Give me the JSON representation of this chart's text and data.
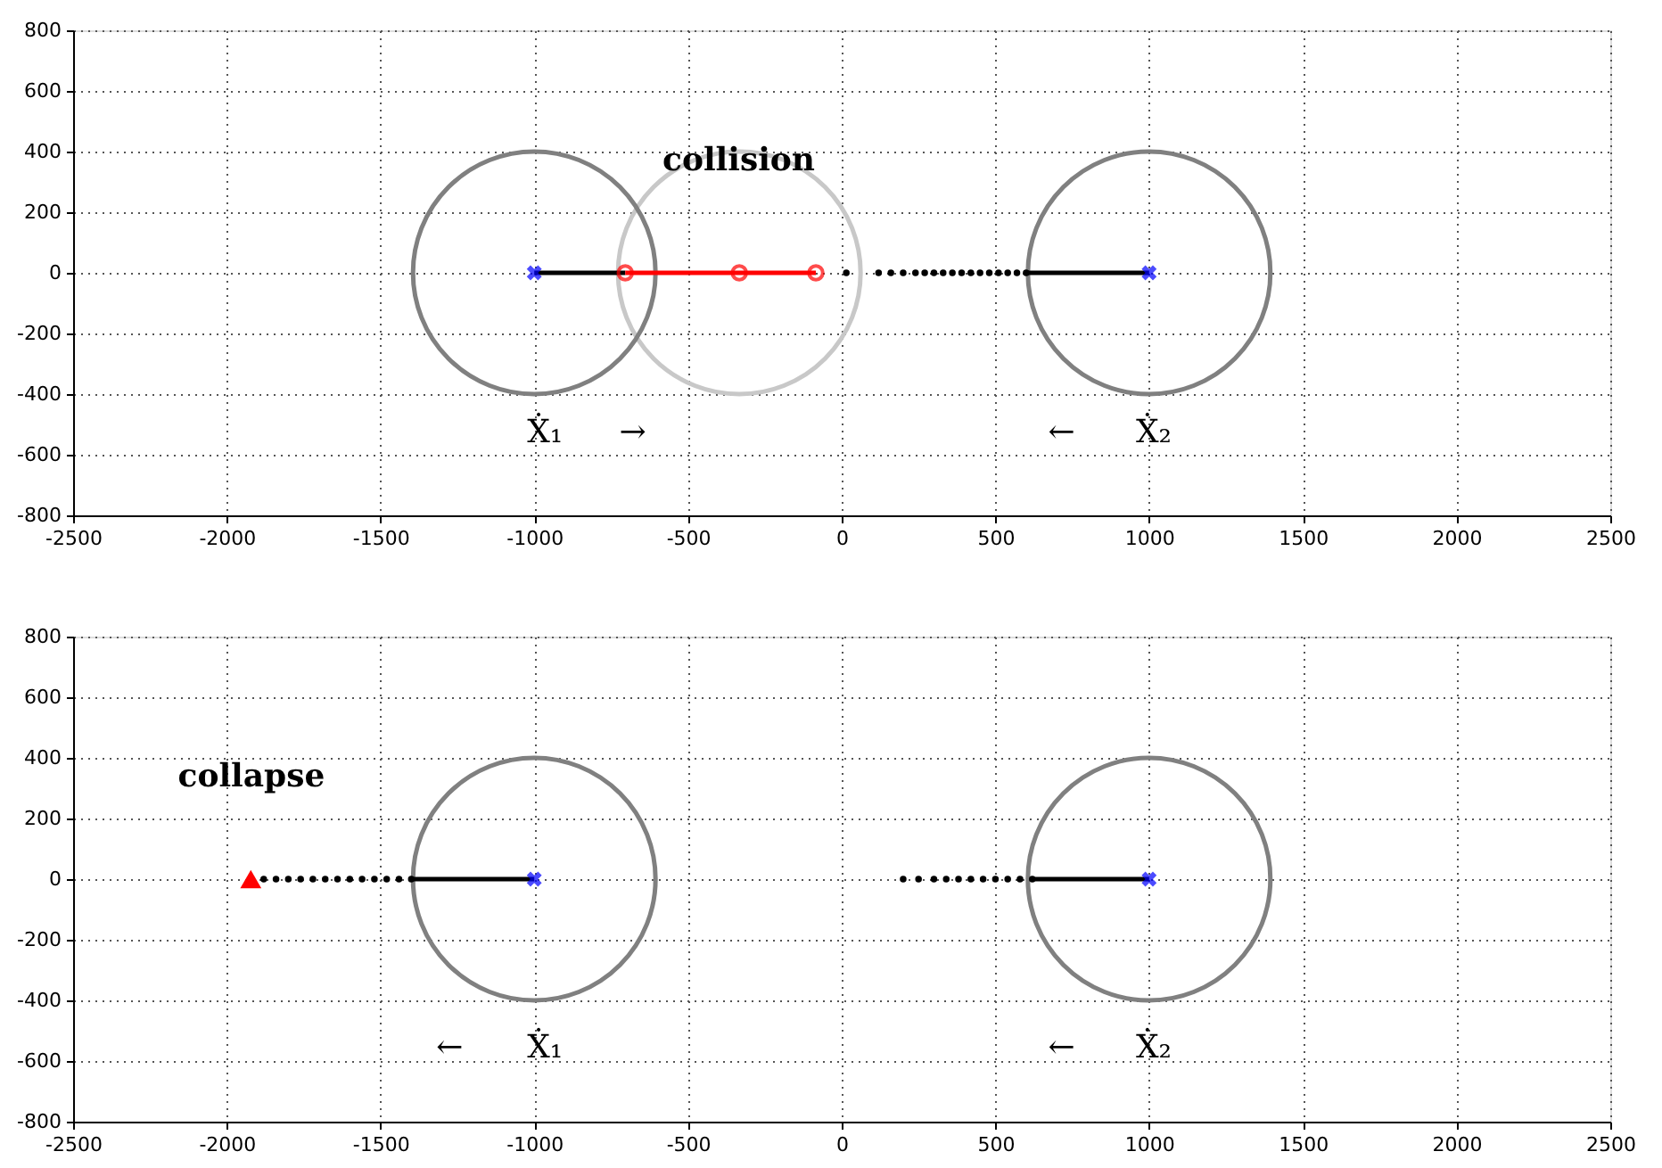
{
  "chart_data": [
    {
      "type": "line",
      "xlim": [
        -2500,
        2500
      ],
      "ylim": [
        -800,
        800
      ],
      "xticks": [
        -2500,
        -2000,
        -1500,
        -1000,
        -500,
        0,
        500,
        1000,
        1500,
        2000,
        2500
      ],
      "yticks": [
        -800,
        -600,
        -400,
        -200,
        0,
        200,
        400,
        600,
        800
      ],
      "grid": true,
      "series": [
        {
          "type": "line",
          "color": "#000000",
          "x": [
            -1000,
            -704
          ],
          "values": [
            0,
            0
          ]
        },
        {
          "type": "line",
          "color": "#ff0000",
          "marker": "circle",
          "x": [
            -704,
            -333,
            -84
          ],
          "values": [
            0,
            0,
            0
          ]
        },
        {
          "type": "scatter",
          "color": "#000000",
          "marker": "circle",
          "x": [
            15,
            120,
            160,
            200,
            240,
            270,
            300,
            330,
            360,
            390,
            420,
            450,
            480,
            510,
            540,
            570,
            600
          ],
          "values": [
            0,
            0,
            0,
            0,
            0,
            0,
            0,
            0,
            0,
            0,
            0,
            0,
            0,
            0,
            0,
            0,
            0
          ]
        },
        {
          "type": "line",
          "color": "#000000",
          "x": [
            600,
            1000
          ],
          "values": [
            0,
            0
          ]
        },
        {
          "type": "scatter",
          "color": "#0000ff",
          "marker": "cross",
          "x": [
            -1000,
            1000
          ],
          "values": [
            0,
            0
          ]
        }
      ],
      "annotations": [
        "collision",
        "Ẋ₁",
        "→",
        "←",
        "Ẋ₂"
      ]
    },
    {
      "type": "line",
      "xlim": [
        -2500,
        2500
      ],
      "ylim": [
        -800,
        800
      ],
      "xticks": [
        -2500,
        -2000,
        -1500,
        -1000,
        -500,
        0,
        500,
        1000,
        1500,
        2000,
        2500
      ],
      "yticks": [
        -800,
        -600,
        -400,
        -200,
        0,
        200,
        400,
        600,
        800
      ],
      "grid": true,
      "series": [
        {
          "type": "scatter",
          "color": "#000000",
          "marker": "circle",
          "x": [
            -1880,
            -1840,
            -1800,
            -1760,
            -1720,
            -1680,
            -1640,
            -1600,
            -1560,
            -1520,
            -1480,
            -1440,
            -1400
          ],
          "values": [
            0,
            0,
            0,
            0,
            0,
            0,
            0,
            0,
            0,
            0,
            0,
            0,
            0
          ]
        },
        {
          "type": "line",
          "color": "#000000",
          "x": [
            -1400,
            -1000
          ],
          "values": [
            0,
            0
          ]
        },
        {
          "type": "scatter",
          "color": "#000000",
          "marker": "circle",
          "x": [
            200,
            250,
            300,
            340,
            380,
            420,
            460,
            500,
            540,
            580,
            620
          ],
          "values": [
            0,
            0,
            0,
            0,
            0,
            0,
            0,
            0,
            0,
            0,
            0
          ]
        },
        {
          "type": "line",
          "color": "#000000",
          "x": [
            620,
            1000
          ],
          "values": [
            0,
            0
          ]
        },
        {
          "type": "scatter",
          "color": "#0000ff",
          "marker": "cross",
          "x": [
            -1000,
            1000
          ],
          "values": [
            0,
            0
          ]
        },
        {
          "type": "scatter",
          "color": "#ff0000",
          "marker": "triangle",
          "x": [
            -1922
          ],
          "values": [
            0
          ]
        }
      ],
      "annotations": [
        "collapse",
        "←",
        "Ẋ₁",
        "←",
        "Ẋ₂"
      ]
    }
  ]
}
